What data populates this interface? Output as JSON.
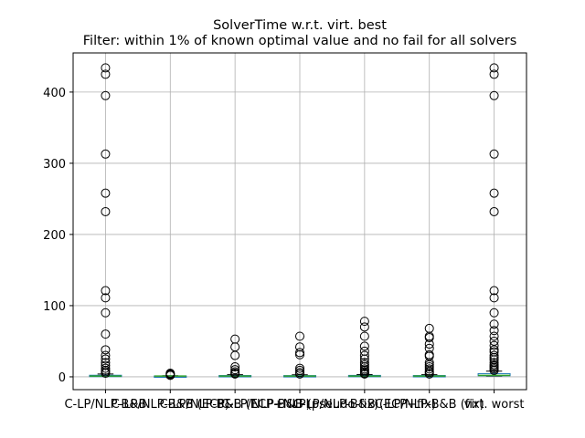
{
  "chart_data": {
    "type": "box",
    "title": "SolverTime w.r.t. virt. best",
    "subtitle": "Filter: within 1% of known optimal value and no fail for all solvers",
    "xlabel": "",
    "ylabel": "",
    "ylim": [
      -18,
      455
    ],
    "yticks": [
      0,
      100,
      200,
      300,
      400
    ],
    "grid": true,
    "categories": [
      "C-LP/NLP-B&B",
      "C-LP/NLP-B&B (ECP)",
      "C-LP/NLP-B&B (ECP+NLP)",
      "C-LP/NLP-B&B (pseudo-fix)",
      "C-LP/NLP-B&B (ECP+fix)",
      "C-LP/NLP-B&B (fix)",
      "virt. worst"
    ],
    "boxes": [
      {
        "q1": 1.0,
        "median": 1.0,
        "q3": 2.2,
        "whisker_low": 1.0,
        "whisker_high": 4.0,
        "outliers": [
          5,
          7,
          9,
          12,
          16,
          20,
          25,
          30,
          38,
          60,
          90,
          111,
          121,
          232,
          258,
          313,
          395,
          425,
          434
        ]
      },
      {
        "q1": 1.0,
        "median": 1.0,
        "q3": 1.2,
        "whisker_low": 1.0,
        "whisker_high": 1.6,
        "outliers": [
          2,
          3,
          4,
          5
        ]
      },
      {
        "q1": 1.0,
        "median": 1.0,
        "q3": 1.8,
        "whisker_low": 1.0,
        "whisker_high": 3.0,
        "outliers": [
          4,
          5,
          7,
          10,
          14,
          30,
          42,
          53
        ]
      },
      {
        "q1": 1.0,
        "median": 1.0,
        "q3": 1.7,
        "whisker_low": 1.0,
        "whisker_high": 2.8,
        "outliers": [
          4,
          6,
          9,
          12,
          31,
          34,
          42,
          57
        ]
      },
      {
        "q1": 1.0,
        "median": 1.0,
        "q3": 2.0,
        "whisker_low": 1.0,
        "whisker_high": 3.2,
        "outliers": [
          4,
          5,
          7,
          9,
          11,
          14,
          17,
          20,
          25,
          30,
          36,
          43,
          57,
          70,
          78
        ]
      },
      {
        "q1": 1.0,
        "median": 1.0,
        "q3": 1.8,
        "whisker_low": 1.0,
        "whisker_high": 3.0,
        "outliers": [
          4,
          6,
          8,
          11,
          14,
          17,
          20,
          29,
          31,
          40,
          46,
          55,
          57,
          68
        ]
      },
      {
        "q1": 1.5,
        "median": 2.0,
        "q3": 4.5,
        "whisker_low": 1.0,
        "whisker_high": 8.0,
        "outliers": [
          9,
          11,
          13,
          15,
          17,
          20,
          24,
          27,
          30,
          35,
          38,
          44,
          50,
          57,
          65,
          74,
          90,
          111,
          121,
          232,
          258,
          313,
          395,
          425,
          434
        ]
      }
    ],
    "colors": {
      "box": "#1f77b4",
      "median": "#2ca02c",
      "grid": "#b0b0b0",
      "outlier": "#000000",
      "axis": "#000000"
    }
  }
}
